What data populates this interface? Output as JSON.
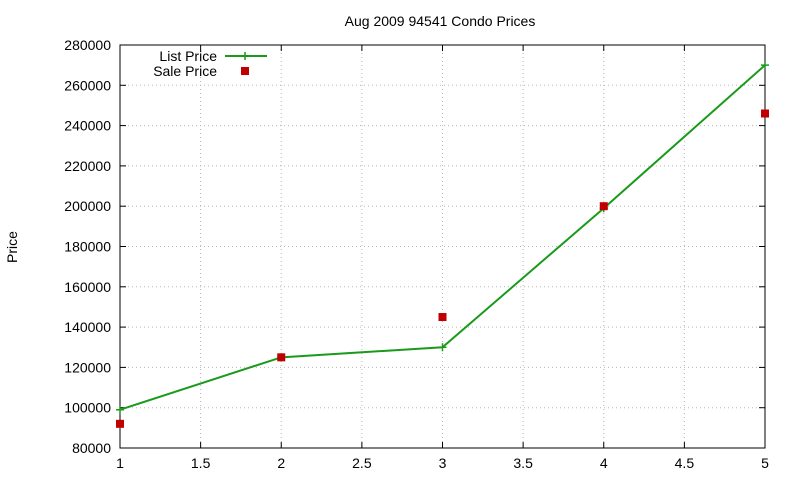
{
  "chart_data": {
    "type": "line",
    "title": "Aug 2009 94541 Condo Prices",
    "xlabel": "",
    "ylabel": "Price",
    "xlim": [
      1,
      5
    ],
    "ylim": [
      80000,
      280000
    ],
    "x_ticks": [
      "1",
      "1.5",
      "2",
      "2.5",
      "3",
      "3.5",
      "4",
      "4.5",
      "5"
    ],
    "y_ticks": [
      "80000",
      "100000",
      "120000",
      "140000",
      "160000",
      "180000",
      "200000",
      "220000",
      "240000",
      "260000",
      "280000"
    ],
    "grid": true,
    "legend_position": "top-left",
    "series": [
      {
        "name": "List Price",
        "style": "lines-points",
        "marker": "plus",
        "color": "#1a9a1a",
        "x": [
          1,
          2,
          3,
          4,
          5
        ],
        "y": [
          99000,
          125000,
          130000,
          199000,
          270000
        ]
      },
      {
        "name": "Sale Price",
        "style": "points",
        "marker": "square",
        "color": "#c00000",
        "x": [
          1,
          2,
          3,
          4,
          5
        ],
        "y": [
          92000,
          125000,
          145000,
          200000,
          246000
        ]
      }
    ]
  }
}
